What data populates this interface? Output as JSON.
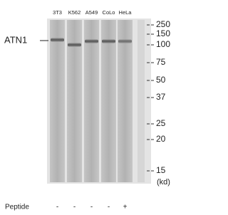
{
  "protein_label": "ATN1",
  "lanes": [
    "3T3",
    "K562",
    "A549",
    "CoLo",
    "HeLa"
  ],
  "markers": [
    "250",
    "150",
    "100",
    "75",
    "50",
    "37",
    "25",
    "20",
    "15"
  ],
  "unit": "(kd)",
  "peptide": {
    "label": "Peptide",
    "signs": [
      "-",
      "-",
      "-",
      "-",
      "+"
    ]
  }
}
